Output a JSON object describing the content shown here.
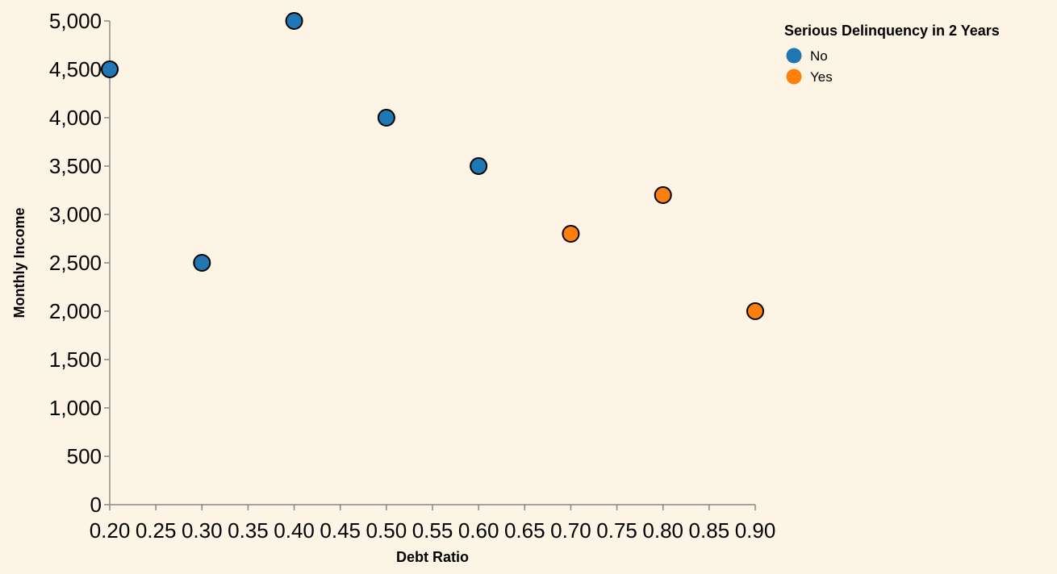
{
  "chart_data": {
    "type": "scatter",
    "title": "",
    "xlabel": "Debt Ratio",
    "ylabel": "Monthly Income",
    "xlim": [
      0.2,
      0.9
    ],
    "ylim": [
      0,
      5000
    ],
    "x_ticks": [
      "0.20",
      "0.25",
      "0.30",
      "0.35",
      "0.40",
      "0.45",
      "0.50",
      "0.55",
      "0.60",
      "0.65",
      "0.70",
      "0.75",
      "0.80",
      "0.85",
      "0.90"
    ],
    "y_ticks": [
      "0",
      "500",
      "1,000",
      "1,500",
      "2,000",
      "2,500",
      "3,000",
      "3,500",
      "4,000",
      "4,500",
      "5,000"
    ],
    "grid": false,
    "legend": {
      "title": "Serious Delinquency in 2 Years",
      "placement": "top-right",
      "entries": [
        {
          "label": "No",
          "color": "#1f77b4"
        },
        {
          "label": "Yes",
          "color": "#ff7f0e"
        }
      ]
    },
    "series": [
      {
        "name": "No",
        "color": "#1f77b4",
        "points": [
          {
            "x": 0.2,
            "y": 4500
          },
          {
            "x": 0.3,
            "y": 2500
          },
          {
            "x": 0.4,
            "y": 5000
          },
          {
            "x": 0.5,
            "y": 4000
          },
          {
            "x": 0.6,
            "y": 3500
          }
        ]
      },
      {
        "name": "Yes",
        "color": "#ff7f0e",
        "points": [
          {
            "x": 0.7,
            "y": 2800
          },
          {
            "x": 0.8,
            "y": 3200
          },
          {
            "x": 0.9,
            "y": 2000
          }
        ]
      }
    ]
  }
}
